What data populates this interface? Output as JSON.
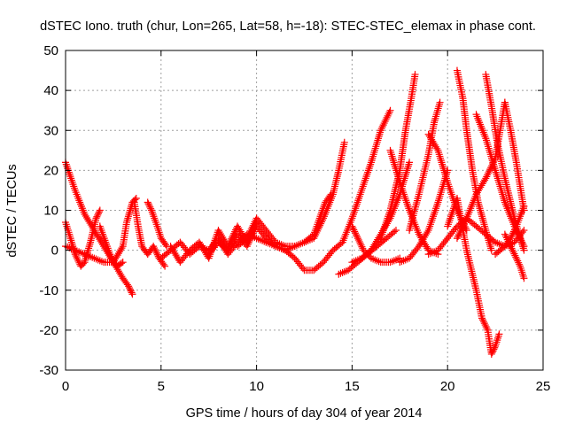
{
  "chart_data": {
    "type": "scatter",
    "title": "dSTEC Iono. truth (chur, Lon=265, Lat=58, h=-18): STEC-STEC_elemax in phase cont.",
    "xlabel": "GPS time / hours of day 304 of year 2014",
    "ylabel": "dSTEC  / TECUs",
    "xlim": [
      0,
      25
    ],
    "ylim": [
      -30,
      50
    ],
    "x_ticks": [
      0,
      5,
      10,
      15,
      20,
      25
    ],
    "y_ticks": [
      -30,
      -20,
      -10,
      0,
      10,
      20,
      30,
      40,
      50
    ],
    "grid": true,
    "marker": "plus",
    "series_color": "#ff0000",
    "series": [
      {
        "x": [
          0.0,
          0.5,
          1.0,
          1.5,
          2.0,
          2.5,
          3.0,
          3.3,
          3.5
        ],
        "y": [
          22,
          15,
          9,
          5,
          1,
          -3,
          -7,
          -9,
          -11
        ]
      },
      {
        "x": [
          0.0,
          0.2,
          0.5,
          0.8,
          1.0,
          1.3,
          1.6,
          1.8
        ],
        "y": [
          7,
          4,
          -1,
          -4,
          -3,
          2,
          8,
          10
        ]
      },
      {
        "x": [
          0.0,
          0.5,
          1.0,
          1.5,
          2.0,
          2.5,
          3.0,
          3.2,
          3.5,
          3.7
        ],
        "y": [
          1,
          0,
          -1,
          -2,
          -3,
          -3,
          1,
          7,
          12,
          13
        ]
      },
      {
        "x": [
          1.8,
          2.1,
          2.4,
          2.7,
          3.0
        ],
        "y": [
          6,
          2,
          -2,
          -4,
          -3
        ]
      },
      {
        "x": [
          3.6,
          3.8,
          4.0,
          4.3,
          4.6,
          4.9,
          5.2
        ],
        "y": [
          12,
          6,
          1,
          -1,
          1,
          -2,
          -4
        ]
      },
      {
        "x": [
          4.3,
          4.5,
          4.8,
          5.0,
          5.3
        ],
        "y": [
          12,
          10,
          6,
          3,
          1
        ]
      },
      {
        "x": [
          5.0,
          5.5,
          6.0,
          6.5,
          7.0,
          7.5,
          8.0,
          8.5,
          9.0,
          9.5,
          10.0,
          10.5
        ],
        "y": [
          -2,
          0,
          2,
          -1,
          1,
          0,
          3,
          -1,
          2,
          4,
          3,
          2
        ]
      },
      {
        "x": [
          5.5,
          6.0,
          6.5,
          7.0,
          7.5,
          8.0,
          8.5,
          9.0,
          9.5,
          10.0
        ],
        "y": [
          1,
          -3,
          0,
          2,
          -2,
          5,
          1,
          6,
          2,
          7
        ]
      },
      {
        "x": [
          7.5,
          8.0,
          8.5,
          9.0,
          9.5,
          10.0,
          10.5,
          11.0,
          11.5,
          12.0
        ],
        "y": [
          -1,
          2,
          0,
          4,
          1,
          6,
          3,
          1,
          0,
          1
        ]
      },
      {
        "x": [
          9.0,
          9.5,
          10.0,
          10.5,
          11.0,
          11.5
        ],
        "y": [
          1,
          3,
          8,
          5,
          2,
          1
        ]
      },
      {
        "x": [
          10.5,
          11.0,
          11.5,
          12.0,
          12.5,
          13.0,
          13.5,
          14.0,
          14.5
        ],
        "y": [
          2,
          1,
          0,
          -2,
          -5,
          -5,
          -3,
          0,
          2
        ]
      },
      {
        "x": [
          11.5,
          12.0,
          12.5,
          13.0,
          13.3,
          13.6,
          13.9
        ],
        "y": [
          1,
          1,
          2,
          4,
          8,
          12,
          14
        ]
      },
      {
        "x": [
          12.5,
          13.0,
          13.5,
          14.0,
          14.3,
          14.6
        ],
        "y": [
          2,
          3,
          8,
          14,
          20,
          27
        ]
      },
      {
        "x": [
          14.3,
          14.8,
          15.3,
          15.8,
          16.3,
          16.8,
          17.3
        ],
        "y": [
          -6,
          -5,
          -3,
          -1,
          1,
          3,
          5
        ]
      },
      {
        "x": [
          14.5,
          15.0,
          15.5,
          16.0,
          16.5,
          17.0
        ],
        "y": [
          2,
          8,
          15,
          22,
          30,
          35
        ]
      },
      {
        "x": [
          15.0,
          15.5,
          16.0,
          16.5,
          17.0,
          17.5,
          18.0
        ],
        "y": [
          -3,
          -2,
          0,
          4,
          8,
          14,
          22
        ]
      },
      {
        "x": [
          15.0,
          15.3,
          15.6,
          16.0,
          16.5,
          17.0,
          17.5
        ],
        "y": [
          6,
          3,
          0,
          -2,
          -3,
          -3,
          -2
        ]
      },
      {
        "x": [
          16.5,
          17.0,
          17.5,
          17.8,
          18.1,
          18.3
        ],
        "y": [
          3,
          10,
          20,
          30,
          38,
          44
        ]
      },
      {
        "x": [
          17.0,
          17.5,
          18.0,
          18.5,
          19.0,
          19.5
        ],
        "y": [
          25,
          17,
          10,
          4,
          0,
          -1
        ]
      },
      {
        "x": [
          17.5,
          18.0,
          18.5,
          19.0,
          19.5,
          20.0
        ],
        "y": [
          -3,
          -2,
          1,
          5,
          12,
          20
        ]
      },
      {
        "x": [
          18.0,
          18.5,
          19.0,
          19.3,
          19.6
        ],
        "y": [
          5,
          14,
          24,
          32,
          37
        ]
      },
      {
        "x": [
          19.0,
          19.5,
          20.0,
          20.5,
          21.0
        ],
        "y": [
          29,
          25,
          17,
          10,
          5
        ]
      },
      {
        "x": [
          19.0,
          19.5,
          20.0,
          20.5,
          21.0,
          21.5,
          22.0,
          22.5,
          23.0,
          23.5,
          24.0
        ],
        "y": [
          -1,
          0,
          3,
          6,
          8,
          6,
          4,
          2,
          1,
          2,
          5
        ]
      },
      {
        "x": [
          20.5,
          20.8,
          21.0,
          21.3,
          21.6,
          22.0,
          22.3
        ],
        "y": [
          45,
          38,
          30,
          20,
          12,
          5,
          0
        ]
      },
      {
        "x": [
          20.5,
          21.0,
          21.5,
          22.0,
          22.5,
          23.0
        ],
        "y": [
          3,
          8,
          14,
          18,
          23,
          37
        ]
      },
      {
        "x": [
          20.0,
          20.5,
          21.0,
          21.5,
          21.8,
          22.1,
          22.3,
          22.5,
          22.7
        ],
        "y": [
          6,
          13,
          0,
          -10,
          -17,
          -20,
          -26,
          -24,
          -21
        ]
      },
      {
        "x": [
          21.5,
          22.0,
          22.5,
          23.0,
          23.5,
          24.0
        ],
        "y": [
          34,
          28,
          20,
          12,
          6,
          1
        ]
      },
      {
        "x": [
          22.0,
          22.3,
          22.6,
          23.0,
          23.5,
          24.0
        ],
        "y": [
          44,
          36,
          27,
          18,
          8,
          0
        ]
      },
      {
        "x": [
          22.5,
          23.0,
          23.3,
          23.6,
          24.0
        ],
        "y": [
          -1,
          1,
          3,
          6,
          11
        ]
      },
      {
        "x": [
          23.0,
          23.3,
          23.6,
          24.0
        ],
        "y": [
          37,
          30,
          22,
          10
        ]
      },
      {
        "x": [
          23.0,
          23.4,
          23.8,
          24.0
        ],
        "y": [
          4,
          0,
          -4,
          -7
        ]
      }
    ]
  }
}
